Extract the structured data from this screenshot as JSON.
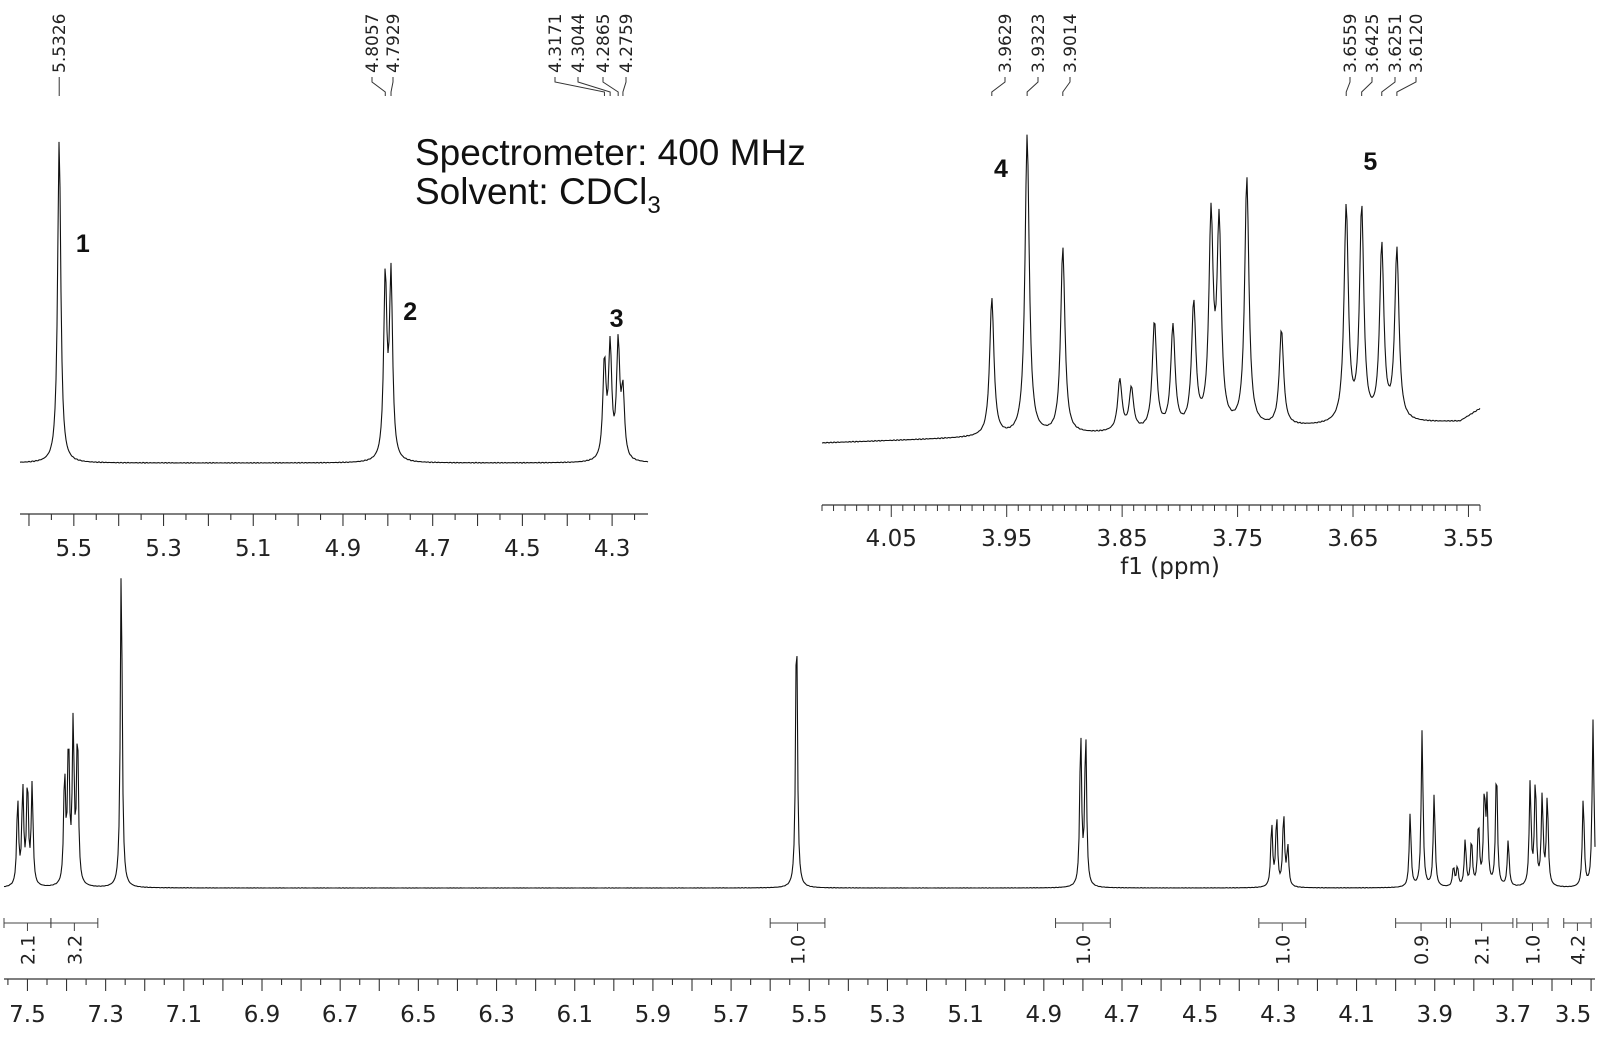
{
  "info": {
    "spectrometer": "Spectrometer: 400 MHz",
    "solvent_prefix": "Solvent: CDCl",
    "solvent_sub": "3"
  },
  "chart_data": [
    {
      "type": "line",
      "xlabel": "",
      "xlim": [
        5.62,
        4.22
      ],
      "x_reversed": true,
      "ticks": [
        "5.5",
        "5.3",
        "5.1",
        "4.9",
        "4.7",
        "4.5",
        "4.3"
      ],
      "peak_labels": [
        "5.5326",
        "4.8057",
        "4.7929",
        "4.3171",
        "4.3044",
        "4.2865",
        "4.2759"
      ],
      "peak_positions": [
        5.5326,
        4.8057,
        4.7929,
        4.3171,
        4.3044,
        4.2865,
        4.2759
      ],
      "peak_heights": [
        1.0,
        0.56,
        0.56,
        0.3,
        0.34,
        0.35,
        0.2
      ],
      "signal_numbers": [
        {
          "label": "1",
          "x": 5.48
        },
        {
          "label": "2",
          "x": 4.75
        },
        {
          "label": "3",
          "x": 4.29
        }
      ]
    },
    {
      "type": "line",
      "xlabel": "f1 (ppm)",
      "xlim": [
        4.11,
        3.54
      ],
      "x_reversed": true,
      "ticks": [
        "4.05",
        "3.95",
        "3.85",
        "3.75",
        "3.65",
        "3.55"
      ],
      "peak_labels": [
        "3.9629",
        "3.9323",
        "3.9014",
        "3.6559",
        "3.6425",
        "3.6251",
        "3.6120"
      ],
      "peaks": [
        {
          "x": 3.9629,
          "h": 0.46
        },
        {
          "x": 3.9323,
          "h": 1.0
        },
        {
          "x": 3.9014,
          "h": 0.62
        },
        {
          "x": 3.852,
          "h": 0.17
        },
        {
          "x": 3.842,
          "h": 0.14
        },
        {
          "x": 3.822,
          "h": 0.36
        },
        {
          "x": 3.806,
          "h": 0.34
        },
        {
          "x": 3.788,
          "h": 0.41
        },
        {
          "x": 3.773,
          "h": 0.68
        },
        {
          "x": 3.766,
          "h": 0.66
        },
        {
          "x": 3.742,
          "h": 0.83
        },
        {
          "x": 3.712,
          "h": 0.32
        },
        {
          "x": 3.6559,
          "h": 0.72
        },
        {
          "x": 3.6425,
          "h": 0.71
        },
        {
          "x": 3.6251,
          "h": 0.58
        },
        {
          "x": 3.612,
          "h": 0.57
        }
      ],
      "signal_numbers": [
        {
          "label": "4",
          "x": 3.955
        },
        {
          "label": "5",
          "x": 3.635
        }
      ]
    },
    {
      "type": "line",
      "xlabel": "",
      "xlim": [
        7.56,
        3.49
      ],
      "x_reversed": true,
      "ticks": [
        "7.5",
        "7.3",
        "7.1",
        "6.9",
        "6.7",
        "6.5",
        "6.3",
        "6.1",
        "5.9",
        "5.7",
        "5.5",
        "5.3",
        "5.1",
        "4.9",
        "4.7",
        "4.5",
        "4.3",
        "4.1",
        "3.9",
        "3.7",
        "3.5"
      ],
      "peaks": [
        {
          "x": 7.525,
          "h": 0.26
        },
        {
          "x": 7.512,
          "h": 0.29
        },
        {
          "x": 7.5,
          "h": 0.31
        },
        {
          "x": 7.488,
          "h": 0.3
        },
        {
          "x": 7.405,
          "h": 0.33
        },
        {
          "x": 7.395,
          "h": 0.43
        },
        {
          "x": 7.383,
          "h": 0.48
        },
        {
          "x": 7.372,
          "h": 0.46
        },
        {
          "x": 7.26,
          "h": 0.98
        },
        {
          "x": 5.5326,
          "h": 0.82
        },
        {
          "x": 4.8057,
          "h": 0.46
        },
        {
          "x": 4.7929,
          "h": 0.46
        },
        {
          "x": 4.3171,
          "h": 0.19
        },
        {
          "x": 4.3044,
          "h": 0.21
        },
        {
          "x": 4.2865,
          "h": 0.22
        },
        {
          "x": 4.2759,
          "h": 0.12
        },
        {
          "x": 3.9629,
          "h": 0.22
        },
        {
          "x": 3.9323,
          "h": 0.47
        },
        {
          "x": 3.9014,
          "h": 0.28
        },
        {
          "x": 3.852,
          "h": 0.06
        },
        {
          "x": 3.842,
          "h": 0.06
        },
        {
          "x": 3.822,
          "h": 0.14
        },
        {
          "x": 3.806,
          "h": 0.14
        },
        {
          "x": 3.788,
          "h": 0.19
        },
        {
          "x": 3.773,
          "h": 0.27
        },
        {
          "x": 3.766,
          "h": 0.24
        },
        {
          "x": 3.742,
          "h": 0.36
        },
        {
          "x": 3.712,
          "h": 0.14
        },
        {
          "x": 3.6559,
          "h": 0.31
        },
        {
          "x": 3.6425,
          "h": 0.32
        },
        {
          "x": 3.6251,
          "h": 0.27
        },
        {
          "x": 3.612,
          "h": 0.27
        },
        {
          "x": 3.52,
          "h": 0.27
        },
        {
          "x": 3.495,
          "h": 0.5
        }
      ],
      "integrals": [
        {
          "label": "2.1",
          "from": 7.56,
          "to": 7.44
        },
        {
          "label": "3.2",
          "from": 7.44,
          "to": 7.32
        },
        {
          "label": "1.0",
          "from": 5.6,
          "to": 5.46
        },
        {
          "label": "1.0",
          "from": 4.87,
          "to": 4.73
        },
        {
          "label": "1.0",
          "from": 4.35,
          "to": 4.23
        },
        {
          "label": "0.9",
          "from": 4.0,
          "to": 3.87
        },
        {
          "label": "2.1",
          "from": 3.86,
          "to": 3.7
        },
        {
          "label": "1.0",
          "from": 3.69,
          "to": 3.61
        },
        {
          "label": "4.2",
          "from": 3.57,
          "to": 3.5
        }
      ]
    }
  ]
}
